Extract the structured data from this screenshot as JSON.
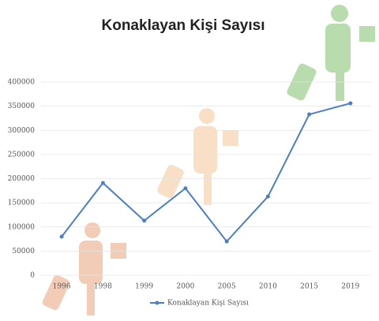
{
  "chart_data": {
    "type": "line",
    "title": "Konaklayan Kişi Sayısı",
    "categories": [
      "1996",
      "1998",
      "1999",
      "2000",
      "2005",
      "2010",
      "2015",
      "2019"
    ],
    "series": [
      {
        "name": "Konaklayan Kişi Sayısı",
        "color": "#4a7ec8",
        "values": [
          80000,
          191000,
          113000,
          180000,
          70000,
          163000,
          333000,
          356000
        ]
      }
    ],
    "ylim": [
      0,
      400000
    ],
    "yticks": [
      0,
      50000,
      100000,
      150000,
      200000,
      250000,
      300000,
      350000,
      400000
    ],
    "grid": true,
    "legend": "bottom"
  }
}
